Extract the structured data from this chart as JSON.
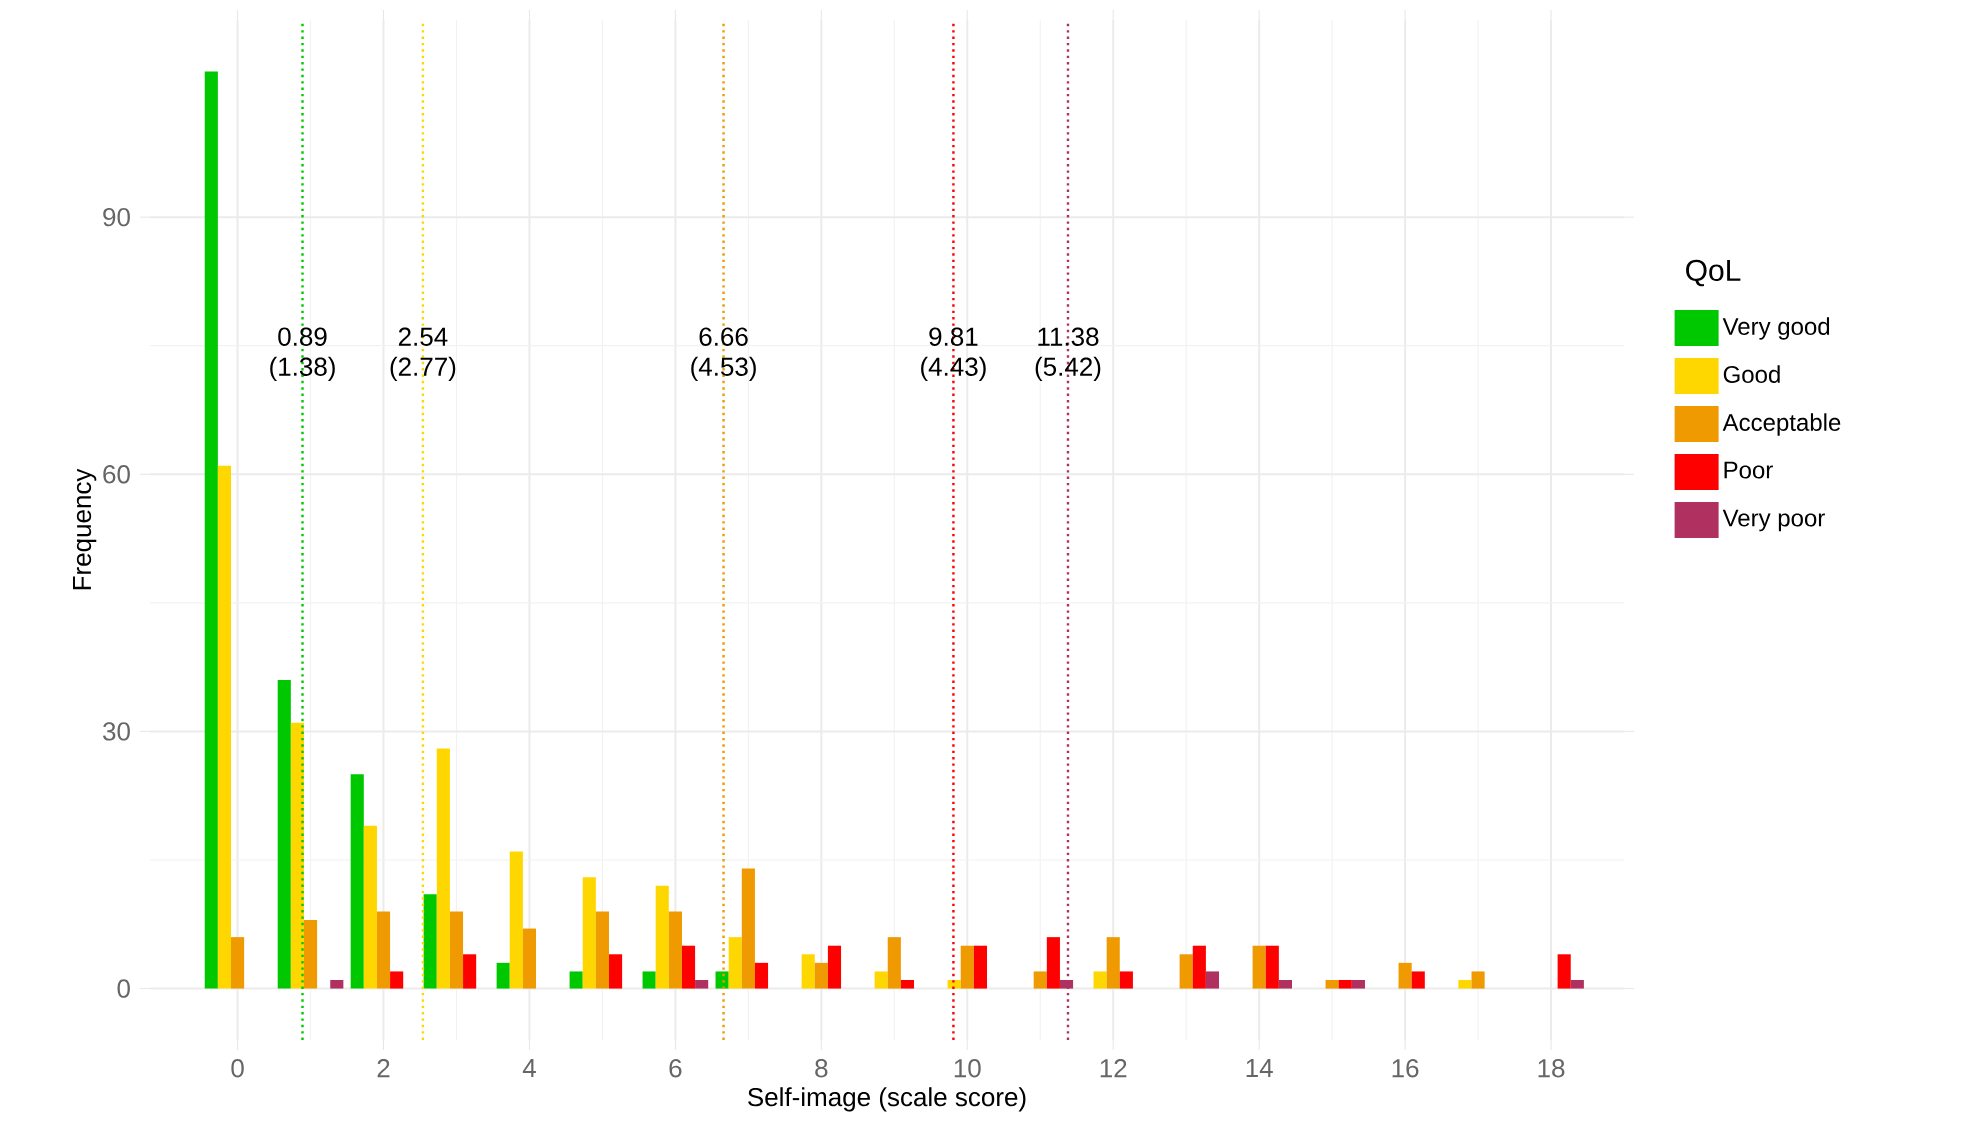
{
  "chart_data": {
    "type": "bar",
    "xlabel": "Self-image (scale score)",
    "ylabel": "Frequency",
    "legend_title": "QoL",
    "x": [
      0,
      1,
      2,
      3,
      4,
      5,
      6,
      7,
      8,
      9,
      10,
      11,
      12,
      13,
      14,
      15,
      16,
      17,
      18
    ],
    "series": [
      {
        "name": "Very good",
        "color": "#00c800",
        "values": [
          107,
          36,
          25,
          11,
          3,
          2,
          2,
          2,
          0,
          0,
          0,
          0,
          0,
          0,
          0,
          0,
          0,
          0,
          0
        ]
      },
      {
        "name": "Good",
        "color": "#ffd700",
        "values": [
          61,
          31,
          19,
          28,
          16,
          13,
          12,
          6,
          4,
          2,
          1,
          0,
          2,
          0,
          0,
          0,
          0,
          1,
          0
        ]
      },
      {
        "name": "Acceptable",
        "color": "#ee9a00",
        "values": [
          6,
          8,
          9,
          9,
          7,
          9,
          9,
          14,
          3,
          6,
          5,
          2,
          6,
          4,
          5,
          1,
          3,
          2,
          0
        ]
      },
      {
        "name": "Poor",
        "color": "#ff0000",
        "values": [
          0,
          0,
          2,
          4,
          0,
          4,
          5,
          3,
          5,
          1,
          5,
          6,
          2,
          5,
          5,
          1,
          2,
          0,
          4
        ]
      },
      {
        "name": "Very poor",
        "color": "#b03060",
        "values": [
          0,
          1,
          0,
          0,
          0,
          0,
          1,
          0,
          0,
          0,
          0,
          1,
          0,
          2,
          1,
          1,
          0,
          0,
          1
        ]
      }
    ],
    "xlim": [
      -1.2,
      19.0
    ],
    "ylim": [
      -6,
      113
    ],
    "xticks": [
      0,
      2,
      4,
      6,
      8,
      10,
      12,
      14,
      16,
      18
    ],
    "yticks": [
      0,
      30,
      60,
      90
    ],
    "grid": true,
    "legend": "right",
    "ref_lines": [
      {
        "axis": "x",
        "value": 0.89,
        "label": "0.89 (1.38)",
        "color": "#00c800",
        "line_style": "dotted"
      },
      {
        "axis": "x",
        "value": 2.54,
        "label": "2.54 (2.77)",
        "color": "#ffd700",
        "line_style": "dotted"
      },
      {
        "axis": "x",
        "value": 6.66,
        "label": "6.66 (4.53)",
        "color": "#ee9a00",
        "line_style": "dotted"
      },
      {
        "axis": "x",
        "value": 9.81,
        "label": "9.81 (4.43)",
        "color": "#ff0000",
        "line_style": "dotted"
      },
      {
        "axis": "x",
        "value": 11.38,
        "label": "11.38 (5.42)",
        "color": "#b03060",
        "line_style": "dotted"
      }
    ]
  }
}
